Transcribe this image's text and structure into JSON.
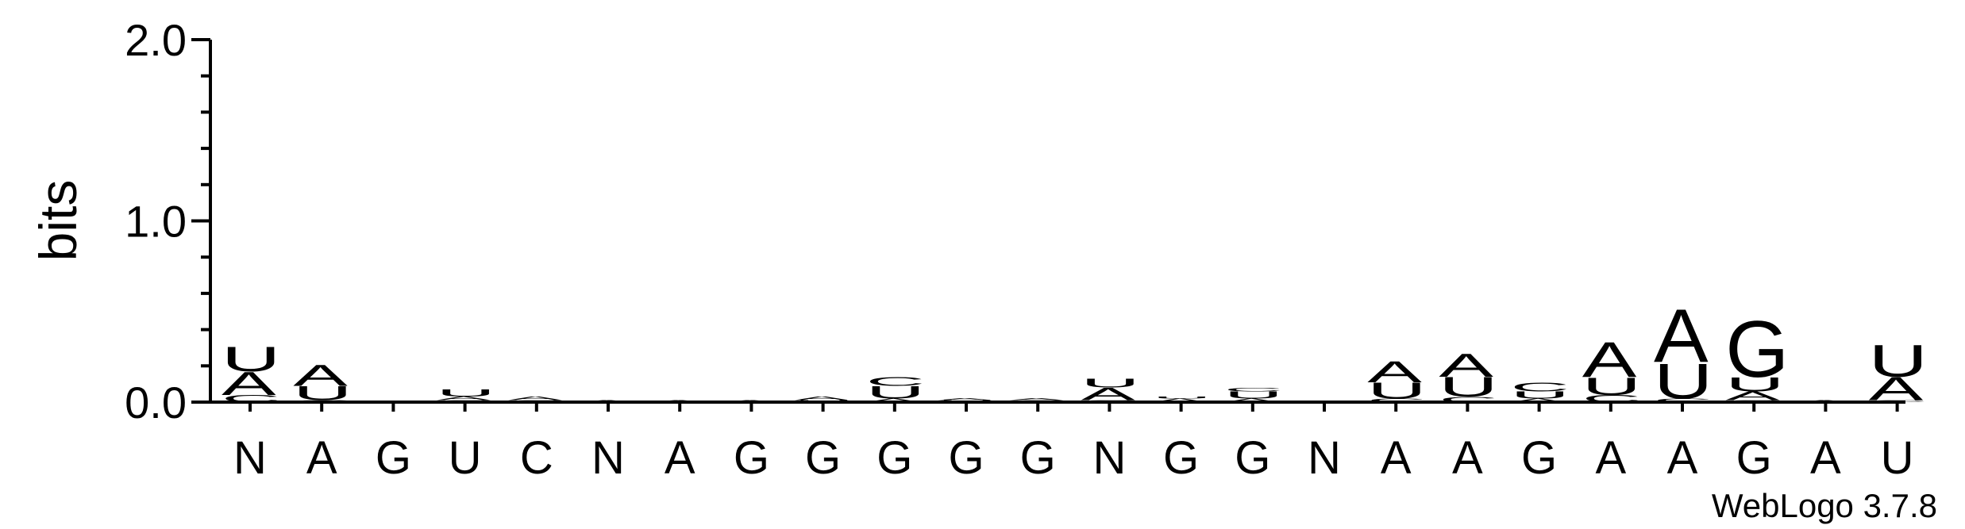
{
  "chart_data": {
    "type": "sequence-logo",
    "ylabel": "bits",
    "ylim": [
      0,
      2.0
    ],
    "yticks": [
      "0.0",
      "1.0",
      "2.0"
    ],
    "credit": "WebLogo 3.7.8",
    "colors": {
      "A": "#ff8c00",
      "U": "#ff8c00",
      "G": "#0000ff",
      "C": "#0000ff"
    },
    "positions": [
      {
        "label": "N",
        "stack": [
          {
            "base": "C",
            "bits": 0.04
          },
          {
            "base": "A",
            "bits": 0.13
          },
          {
            "base": "U",
            "bits": 0.14
          }
        ]
      },
      {
        "label": "A",
        "stack": [
          {
            "base": "C",
            "bits": 0.01
          },
          {
            "base": "U",
            "bits": 0.08
          },
          {
            "base": "A",
            "bits": 0.12
          }
        ]
      },
      {
        "label": "G",
        "stack": []
      },
      {
        "label": "U",
        "stack": [
          {
            "base": "C",
            "bits": 0.01
          },
          {
            "base": "A",
            "bits": 0.02
          },
          {
            "base": "U",
            "bits": 0.04
          }
        ]
      },
      {
        "label": "C",
        "stack": [
          {
            "base": "C",
            "bits": 0.01
          },
          {
            "base": "A",
            "bits": 0.02
          }
        ]
      },
      {
        "label": "N",
        "stack": [
          {
            "base": "A",
            "bits": 0.01
          }
        ]
      },
      {
        "label": "A",
        "stack": [
          {
            "base": "A",
            "bits": 0.01
          }
        ]
      },
      {
        "label": "G",
        "stack": [
          {
            "base": "A",
            "bits": 0.01
          }
        ]
      },
      {
        "label": "G",
        "stack": [
          {
            "base": "U",
            "bits": 0.01
          },
          {
            "base": "A",
            "bits": 0.02
          }
        ]
      },
      {
        "label": "G",
        "stack": [
          {
            "base": "A",
            "bits": 0.02
          },
          {
            "base": "U",
            "bits": 0.07
          },
          {
            "base": "C",
            "bits": 0.05
          }
        ]
      },
      {
        "label": "G",
        "stack": [
          {
            "base": "U",
            "bits": 0.01
          },
          {
            "base": "A",
            "bits": 0.01
          }
        ]
      },
      {
        "label": "G",
        "stack": [
          {
            "base": "C",
            "bits": 0.01
          },
          {
            "base": "A",
            "bits": 0.01
          }
        ]
      },
      {
        "label": "N",
        "stack": [
          {
            "base": "C",
            "bits": 0.01
          },
          {
            "base": "A",
            "bits": 0.07
          },
          {
            "base": "U",
            "bits": 0.05
          }
        ]
      },
      {
        "label": "G",
        "stack": [
          {
            "base": "A",
            "bits": 0.02
          },
          {
            "base": "U",
            "bits": 0.01
          }
        ]
      },
      {
        "label": "G",
        "stack": [
          {
            "base": "A",
            "bits": 0.02
          },
          {
            "base": "U",
            "bits": 0.04
          },
          {
            "base": "C",
            "bits": 0.02
          }
        ]
      },
      {
        "label": "N",
        "stack": []
      },
      {
        "label": "A",
        "stack": [
          {
            "base": "C",
            "bits": 0.02
          },
          {
            "base": "U",
            "bits": 0.09
          },
          {
            "base": "A",
            "bits": 0.12
          }
        ]
      },
      {
        "label": "A",
        "stack": [
          {
            "base": "C",
            "bits": 0.03
          },
          {
            "base": "U",
            "bits": 0.11
          },
          {
            "base": "A",
            "bits": 0.13
          }
        ]
      },
      {
        "label": "G",
        "stack": [
          {
            "base": "A",
            "bits": 0.02
          },
          {
            "base": "U",
            "bits": 0.04
          },
          {
            "base": "C",
            "bits": 0.05
          }
        ]
      },
      {
        "label": "A",
        "stack": [
          {
            "base": "C",
            "bits": 0.04
          },
          {
            "base": "U",
            "bits": 0.1
          },
          {
            "base": "A",
            "bits": 0.2
          }
        ]
      },
      {
        "label": "A",
        "stack": [
          {
            "base": "C",
            "bits": 0.02
          },
          {
            "base": "U",
            "bits": 0.2
          },
          {
            "base": "A",
            "bits": 0.3
          }
        ]
      },
      {
        "label": "G",
        "stack": [
          {
            "base": "C",
            "bits": 0.01
          },
          {
            "base": "A",
            "bits": 0.05
          },
          {
            "base": "U",
            "bits": 0.08
          },
          {
            "base": "G",
            "bits": 0.32
          }
        ]
      },
      {
        "label": "A",
        "stack": [
          {
            "base": "A",
            "bits": 0.01
          }
        ]
      },
      {
        "label": "U",
        "stack": [
          {
            "base": "C",
            "bits": 0.01
          },
          {
            "base": "A",
            "bits": 0.13
          },
          {
            "base": "U",
            "bits": 0.18
          }
        ]
      }
    ]
  }
}
